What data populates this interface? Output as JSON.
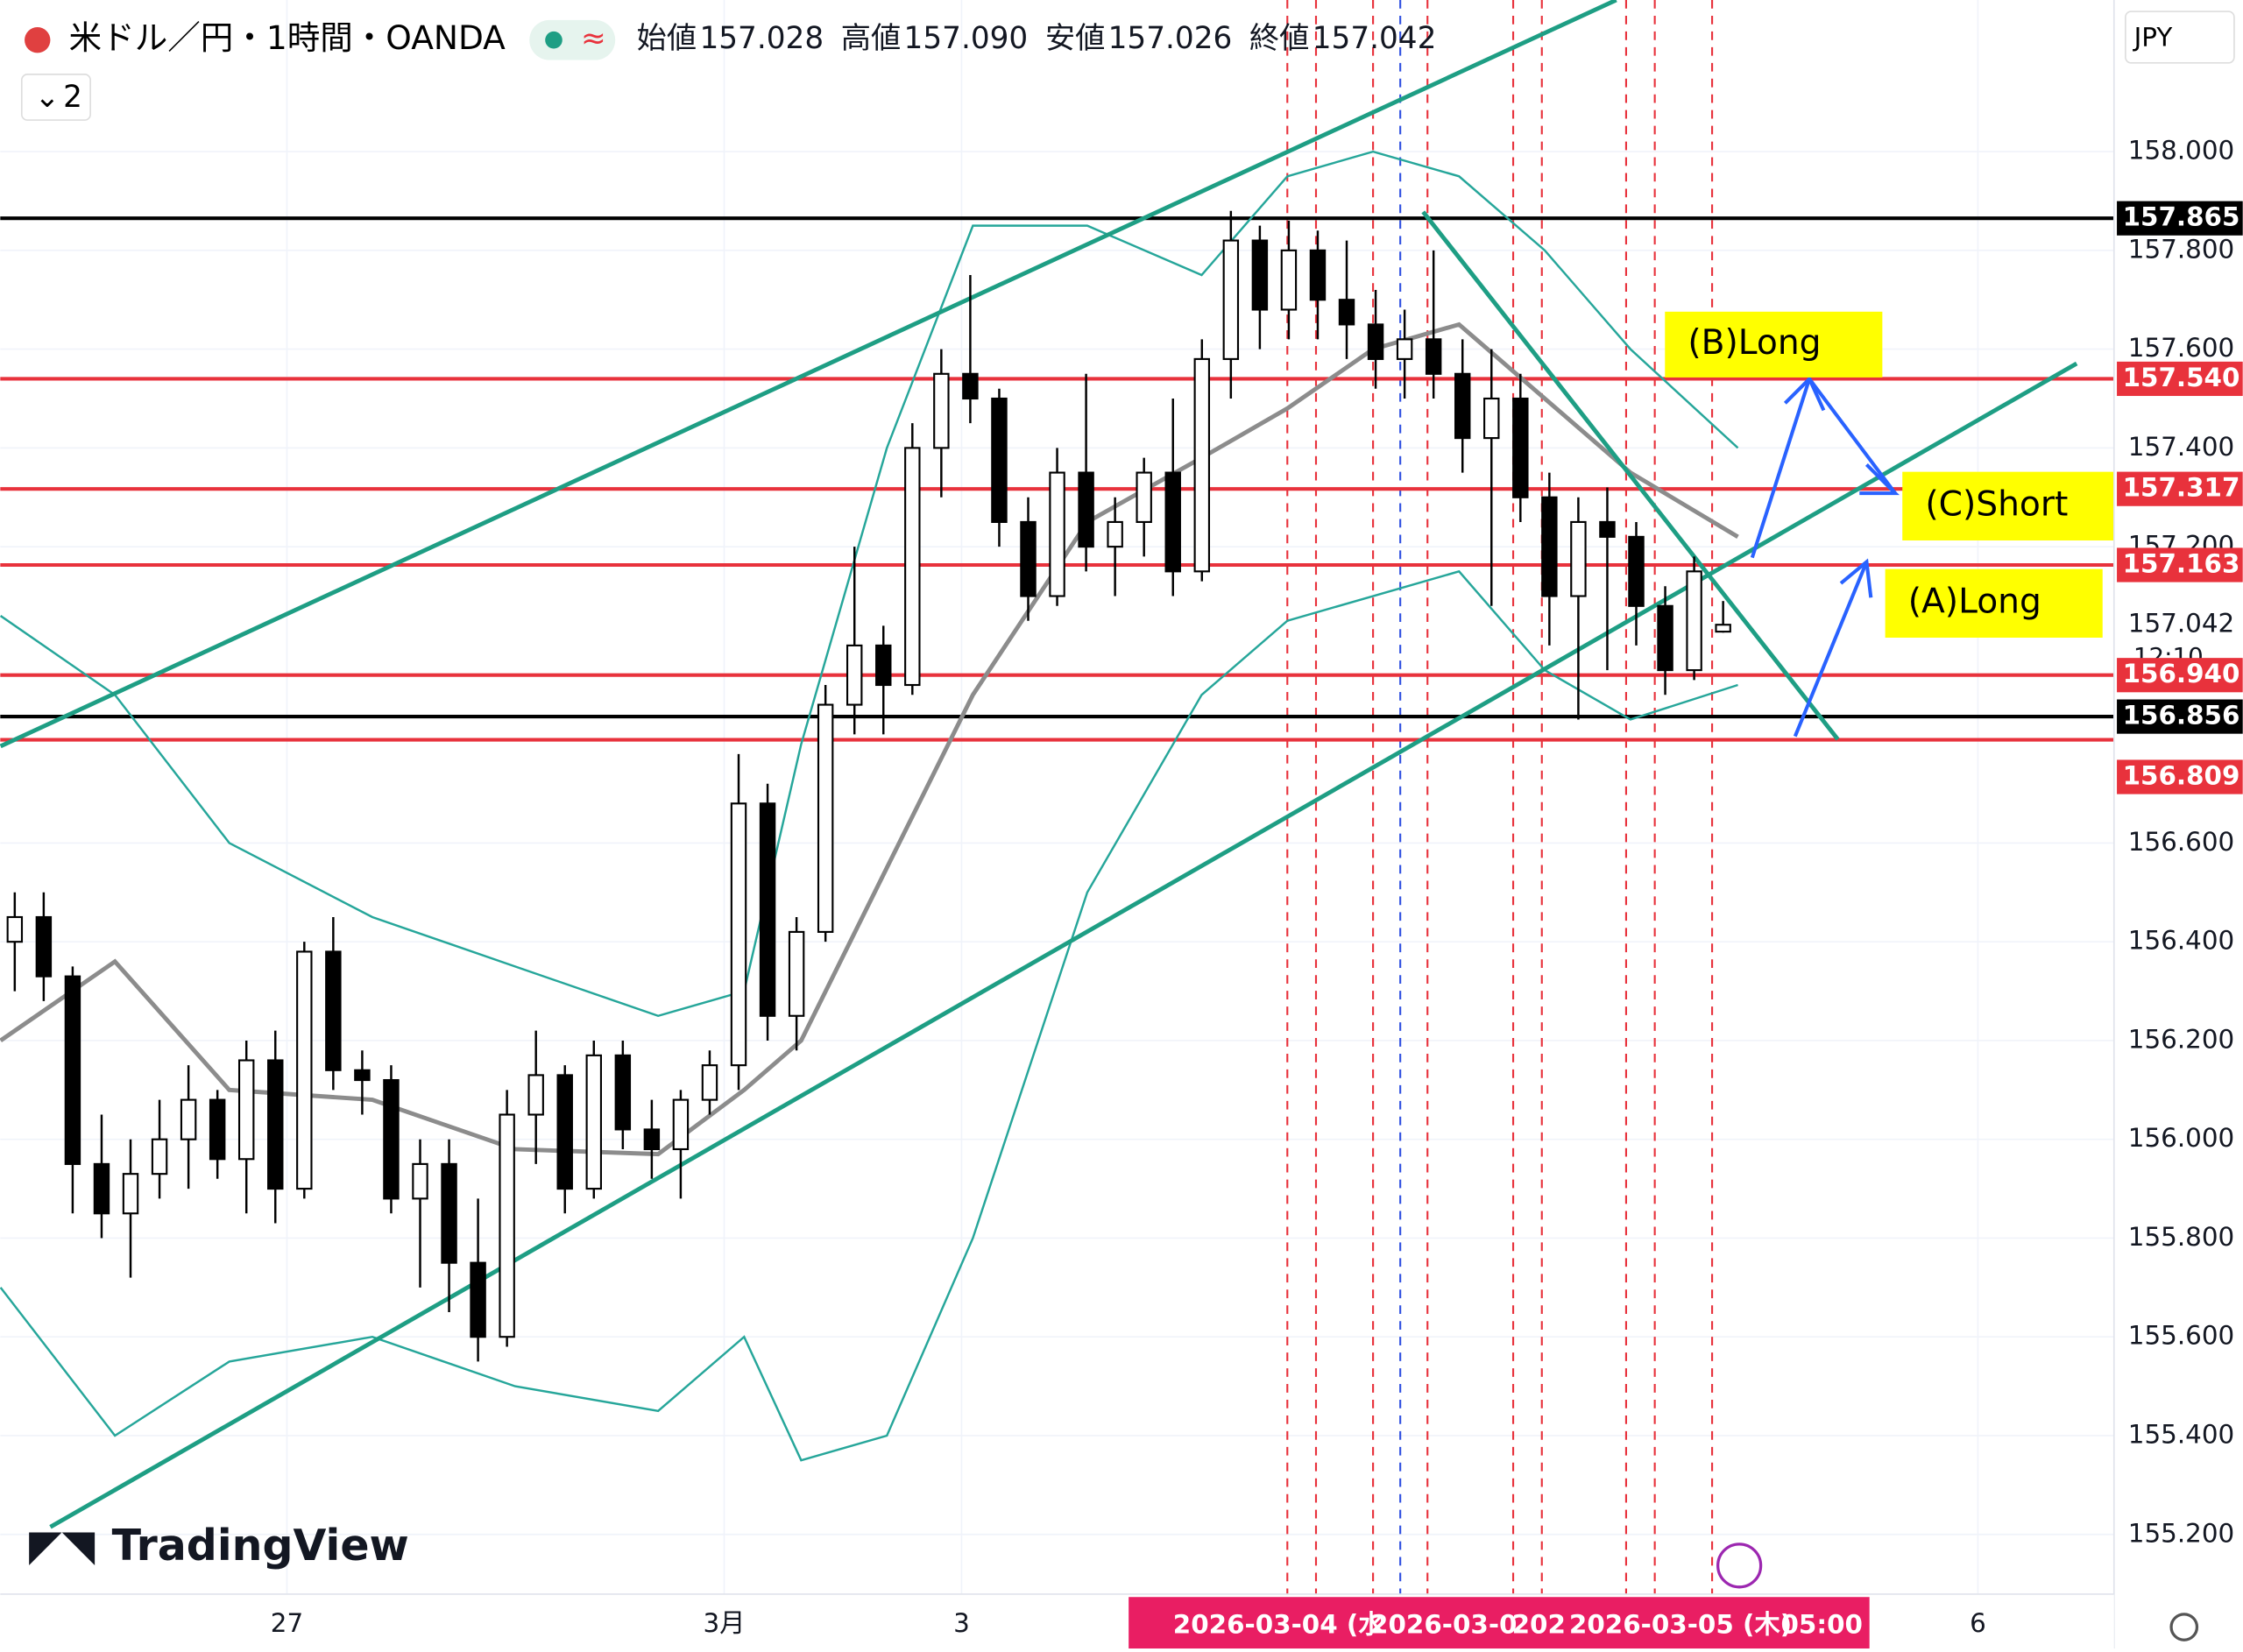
{
  "header": {
    "symbol": "米ドル／円・1時間・OANDA",
    "indicator_count": "2",
    "currency": "JPY",
    "brand": "TradingView",
    "ohlc": [
      {
        "label": "始値",
        "value": "157.028"
      },
      {
        "label": "高値",
        "value": "157.090"
      },
      {
        "label": "安値",
        "value": "157.026"
      },
      {
        "label": "終値",
        "value": "157.042"
      }
    ]
  },
  "chart_data": {
    "type": "candlestick",
    "x": [
      0,
      1,
      2,
      3,
      4,
      5,
      6,
      7,
      8,
      9,
      10,
      11,
      12,
      13,
      14,
      15,
      16,
      17,
      18,
      19,
      20,
      21,
      22,
      23,
      24,
      25,
      26,
      27,
      28,
      29,
      30,
      31,
      32,
      33,
      34,
      35,
      36,
      37,
      38,
      39,
      40,
      41,
      42,
      43,
      44,
      45,
      46,
      47,
      48,
      49,
      50,
      51,
      52,
      53,
      54,
      55,
      56,
      57,
      58,
      59
    ],
    "open": [
      156.4,
      156.45,
      156.33,
      155.95,
      155.85,
      155.93,
      156.0,
      156.08,
      155.96,
      156.16,
      155.9,
      156.38,
      156.14,
      156.12,
      155.88,
      155.95,
      155.75,
      155.6,
      156.05,
      156.13,
      155.9,
      156.17,
      156.02,
      155.98,
      156.08,
      156.15,
      156.68,
      156.25,
      156.42,
      156.88,
      157.0,
      156.92,
      157.4,
      157.55,
      157.5,
      157.25,
      157.1,
      157.35,
      157.2,
      157.25,
      157.35,
      157.15,
      157.58,
      157.82,
      157.68,
      157.8,
      157.7,
      157.65,
      157.58,
      157.62,
      157.55,
      157.42,
      157.5,
      157.3,
      157.1,
      157.25,
      157.22,
      157.08,
      156.95,
      157.028
    ],
    "high": [
      156.5,
      156.5,
      156.35,
      156.05,
      156.0,
      156.08,
      156.15,
      156.1,
      156.2,
      156.22,
      156.4,
      156.45,
      156.18,
      156.15,
      156.0,
      156.0,
      155.88,
      156.1,
      156.22,
      156.15,
      156.2,
      156.2,
      156.08,
      156.1,
      156.18,
      156.78,
      156.72,
      156.45,
      156.92,
      157.2,
      157.04,
      157.45,
      157.6,
      157.75,
      157.52,
      157.3,
      157.4,
      157.55,
      157.3,
      157.38,
      157.5,
      157.62,
      157.88,
      157.85,
      157.86,
      157.84,
      157.82,
      157.72,
      157.68,
      157.8,
      157.62,
      157.6,
      157.55,
      157.35,
      157.3,
      157.32,
      157.25,
      157.12,
      157.18,
      157.09
    ],
    "low": [
      156.3,
      156.28,
      155.85,
      155.8,
      155.72,
      155.88,
      155.9,
      155.92,
      155.85,
      155.83,
      155.88,
      156.1,
      156.05,
      155.85,
      155.7,
      155.65,
      155.55,
      155.58,
      155.95,
      155.85,
      155.88,
      155.98,
      155.92,
      155.88,
      156.05,
      156.1,
      156.2,
      156.18,
      156.4,
      156.82,
      156.82,
      156.9,
      157.3,
      157.45,
      157.2,
      157.05,
      157.08,
      157.15,
      157.1,
      157.18,
      157.1,
      157.13,
      157.5,
      157.6,
      157.62,
      157.62,
      157.58,
      157.52,
      157.5,
      157.5,
      157.35,
      157.08,
      157.25,
      157.0,
      156.85,
      156.95,
      157.0,
      156.9,
      156.93,
      157.026
    ],
    "close": [
      156.45,
      156.33,
      155.95,
      155.85,
      155.93,
      156.0,
      156.08,
      155.96,
      156.16,
      155.9,
      156.38,
      156.14,
      156.12,
      155.88,
      155.95,
      155.75,
      155.6,
      156.05,
      156.13,
      155.9,
      156.17,
      156.02,
      155.98,
      156.08,
      156.15,
      156.68,
      156.25,
      156.42,
      156.88,
      157.0,
      156.92,
      157.4,
      157.55,
      157.5,
      157.25,
      157.1,
      157.35,
      157.2,
      157.25,
      157.35,
      157.15,
      157.58,
      157.82,
      157.68,
      157.8,
      157.7,
      157.65,
      157.58,
      157.62,
      157.55,
      157.42,
      157.5,
      157.3,
      157.1,
      157.25,
      157.22,
      157.08,
      156.95,
      157.15,
      157.042
    ],
    "up_color": "#ffffff",
    "down_color": "#000000",
    "outline_color": "#000000",
    "indicators": {
      "x": [
        -0.49,
        3.46,
        7.41,
        12.35,
        17.28,
        22.22,
        25.19,
        27.16,
        30.12,
        33.09,
        37.04,
        40.99,
        43.95,
        46.91,
        49.88,
        52.84,
        55.8,
        59.51
      ],
      "series": [
        {
          "name": "MA",
          "color": "#8c8c8c",
          "values": [
            156.2,
            156.36,
            156.1,
            156.08,
            155.98,
            155.97,
            156.1,
            156.2,
            156.55,
            156.9,
            157.25,
            157.38,
            157.48,
            157.6,
            157.65,
            157.5,
            157.35,
            157.22
          ]
        },
        {
          "name": "Upper",
          "color": "#26a69a",
          "values": [
            157.06,
            156.9,
            156.6,
            156.45,
            156.35,
            156.25,
            156.3,
            156.8,
            157.4,
            157.85,
            157.85,
            157.75,
            157.95,
            158.0,
            157.95,
            157.8,
            157.6,
            157.4
          ]
        },
        {
          "name": "Lower",
          "color": "#26a69a",
          "values": [
            155.7,
            155.4,
            155.55,
            155.6,
            155.5,
            155.45,
            155.6,
            155.35,
            155.4,
            155.8,
            156.5,
            156.9,
            157.05,
            157.1,
            157.15,
            156.95,
            156.85,
            156.92
          ]
        }
      ]
    },
    "trendlines": [
      {
        "x": [
          -0.49,
          55.31
        ],
        "y": [
          156.796,
          158.307
        ]
      },
      {
        "x": [
          1.23,
          71.21
        ],
        "y": [
          155.215,
          157.571
        ]
      },
      {
        "x": [
          48.64,
          62.96
        ],
        "y": [
          157.878,
          156.81
        ]
      }
    ],
    "trendline_color": "#1e9e84",
    "levels": [
      {
        "value": 157.865,
        "label": "157.865",
        "color": "#000000"
      },
      {
        "value": 157.54,
        "label": "157.540",
        "color": "#e8323c"
      },
      {
        "value": 157.317,
        "label": "157.317",
        "color": "#e8323c"
      },
      {
        "value": 157.163,
        "label": "157.163",
        "color": "#e8323c"
      },
      {
        "value": 156.94,
        "label": "156.940",
        "color": "#e8323c"
      },
      {
        "value": 156.856,
        "label": "156.856",
        "color": "#000000"
      },
      {
        "value": 156.809,
        "label": "156.809",
        "color": "#e8323c"
      }
    ],
    "vlines": [
      {
        "x": 43.95,
        "color": "#e8323c"
      },
      {
        "x": 44.94,
        "color": "#e8323c"
      },
      {
        "x": 46.91,
        "color": "#e8323c"
      },
      {
        "x": 47.85,
        "color": "#3050e0"
      },
      {
        "x": 48.79,
        "color": "#e8323c"
      },
      {
        "x": 51.75,
        "color": "#e8323c"
      },
      {
        "x": 52.74,
        "color": "#e8323c"
      },
      {
        "x": 55.65,
        "color": "#e8323c"
      },
      {
        "x": 56.64,
        "color": "#e8323c"
      },
      {
        "x": 58.62,
        "color": "#e8323c"
      }
    ],
    "last_price": {
      "value": 157.042,
      "label": "157.042",
      "countdown": "12:10"
    },
    "xlim": [
      -0.5,
      72.5
    ],
    "ylim": [
      155.079,
      158.307
    ],
    "yticks": [
      {
        "value": 155.2,
        "label": "155.200"
      },
      {
        "value": 155.4,
        "label": "155.400"
      },
      {
        "value": 155.6,
        "label": "155.600"
      },
      {
        "value": 155.8,
        "label": "155.800"
      },
      {
        "value": 156,
        "label": "156.000"
      },
      {
        "value": 156.2,
        "label": "156.200"
      },
      {
        "value": 156.4,
        "label": "156.400"
      },
      {
        "value": 156.6,
        "label": "156.600"
      },
      {
        "value": 157.2,
        "label": "157.200"
      },
      {
        "value": 157.4,
        "label": "157.400"
      },
      {
        "value": 157.6,
        "label": "157.600"
      },
      {
        "value": 157.8,
        "label": "157.800"
      },
      {
        "value": 158,
        "label": "158.000"
      }
    ],
    "xticks": [
      {
        "value": 9.4,
        "label": "27"
      },
      {
        "value": 24.5,
        "label": "3月"
      },
      {
        "value": 32.7,
        "label": "3"
      },
      {
        "value": 67.8,
        "label": "6"
      }
    ],
    "time_labels": [
      "2026-03-04 (水",
      "2026-03-0",
      "202",
      "2026-03-05 (木)",
      "05:00"
    ],
    "annotations": [
      "(B)Long",
      "(C)Short",
      "(A)Long"
    ]
  }
}
